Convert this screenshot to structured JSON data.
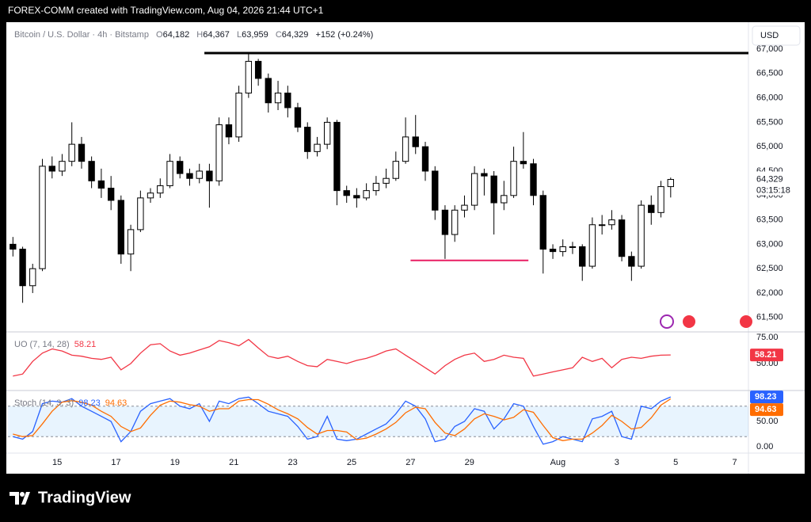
{
  "header": "FOREX-COMM created with TradingView.com, Aug 04, 2026 21:44 UTC+1",
  "footer": "TradingView",
  "chart_data": [
    {
      "type": "candlestick",
      "legend": {
        "symbol": "Bitcoin / U.S. Dollar · 4h · Bitstamp",
        "o": "O",
        "open": "64,182",
        "h": "H",
        "high": "64,367",
        "l": "L",
        "low": "63,959",
        "c": "C",
        "close": "64,329",
        "change": "+152 (+0.24%)"
      },
      "currency": "USD",
      "countdown": "03:15:18",
      "up_color": "#ffffff",
      "down_color": "#000000",
      "x": [
        13.5,
        13.83,
        14.17,
        14.5,
        14.83,
        15.17,
        15.5,
        15.83,
        16.17,
        16.5,
        16.83,
        17.17,
        17.5,
        17.83,
        18.17,
        18.5,
        18.83,
        19.17,
        19.5,
        19.83,
        20.17,
        20.5,
        20.83,
        21.17,
        21.5,
        21.83,
        22.17,
        22.5,
        22.83,
        23.17,
        23.5,
        23.83,
        24.17,
        24.5,
        24.83,
        25.17,
        25.5,
        25.83,
        26.17,
        26.5,
        26.83,
        27.17,
        27.5,
        27.83,
        28.17,
        28.5,
        28.83,
        29.17,
        29.5,
        29.83,
        30.17,
        30.5,
        30.83,
        31.17,
        31.5,
        31.83,
        32.17,
        32.5,
        32.83,
        33.17,
        33.5,
        33.83,
        34.17,
        34.5,
        34.83,
        35.17,
        35.5,
        35.83
      ],
      "open": [
        63000,
        62900,
        62150,
        62500,
        64600,
        64500,
        64700,
        65050,
        64700,
        64300,
        64150,
        63900,
        62800,
        63300,
        63950,
        64050,
        64200,
        64700,
        64450,
        64350,
        64500,
        64300,
        65450,
        65200,
        66100,
        66750,
        66400,
        65900,
        66100,
        65800,
        65400,
        64900,
        65050,
        65500,
        64100,
        64000,
        63950,
        64100,
        64250,
        64350,
        64700,
        65200,
        65000,
        64500,
        63700,
        63200,
        63700,
        63800,
        64450,
        64400,
        63850,
        64000,
        64700,
        64650,
        64000,
        62900,
        62850,
        62950,
        62950,
        62550,
        63400,
        63400,
        63500,
        62750,
        62550,
        63800,
        63650,
        64182
      ],
      "high": [
        63150,
        62950,
        62600,
        64750,
        64800,
        64850,
        65500,
        65200,
        64800,
        64550,
        64400,
        64000,
        63400,
        64100,
        64150,
        64350,
        64850,
        64800,
        64550,
        64650,
        64650,
        65600,
        65600,
        66250,
        66900,
        66800,
        66500,
        66350,
        66250,
        65900,
        65500,
        65200,
        65600,
        65550,
        64200,
        64150,
        64250,
        64400,
        64550,
        64900,
        65600,
        65650,
        65100,
        64600,
        63800,
        63800,
        64000,
        64600,
        64550,
        64500,
        64300,
        65000,
        65300,
        64750,
        64100,
        63000,
        63100,
        63050,
        63000,
        63550,
        63600,
        63700,
        63600,
        62850,
        63900,
        64000,
        64300,
        64367
      ],
      "low": [
        62750,
        61800,
        62000,
        62450,
        64350,
        64400,
        64600,
        64550,
        64150,
        63950,
        63700,
        62600,
        62450,
        63250,
        63850,
        63950,
        64150,
        64350,
        64200,
        64250,
        63750,
        64200,
        65050,
        65100,
        66000,
        66250,
        65700,
        65750,
        65600,
        65300,
        64750,
        64800,
        64950,
        63800,
        63850,
        63750,
        63900,
        64000,
        64150,
        64300,
        64650,
        64850,
        64300,
        63500,
        62700,
        63050,
        63550,
        63700,
        64000,
        63200,
        63700,
        63950,
        64550,
        63800,
        62400,
        62700,
        62750,
        62800,
        62250,
        62500,
        63200,
        63300,
        62650,
        62250,
        62500,
        63400,
        63550,
        63959
      ],
      "close": [
        62900,
        62150,
        62500,
        64600,
        64500,
        64700,
        65050,
        64700,
        64300,
        64150,
        63900,
        62800,
        63300,
        63950,
        64050,
        64200,
        64700,
        64450,
        64350,
        64500,
        64300,
        65450,
        65200,
        66100,
        66750,
        66400,
        65900,
        66100,
        65800,
        65400,
        64900,
        65050,
        65500,
        64100,
        64000,
        63950,
        64100,
        64250,
        64350,
        64700,
        65200,
        65000,
        64500,
        63700,
        63200,
        63700,
        63800,
        64450,
        64400,
        63850,
        64000,
        64700,
        64650,
        64000,
        62900,
        62850,
        62950,
        62950,
        62550,
        63400,
        63400,
        63500,
        62750,
        62550,
        63800,
        63650,
        64182,
        64329
      ],
      "lines": [
        {
          "value": 66920,
          "from": 20,
          "color": "#000000"
        },
        {
          "value": 62670,
          "from": 27,
          "to": 31,
          "color": "#e91e63"
        }
      ],
      "xlim": [
        13.33,
        38.47
      ],
      "ylim": [
        61220,
        67520
      ],
      "yticks": [
        {
          "value": 61500,
          "label": "61,500"
        },
        {
          "value": 62000,
          "label": "62,000"
        },
        {
          "value": 62500,
          "label": "62,500"
        },
        {
          "value": 63000,
          "label": "63,000"
        },
        {
          "value": 63500,
          "label": "63,500"
        },
        {
          "value": 64000,
          "label": "64,000"
        },
        {
          "value": 64500,
          "label": "64,500"
        },
        {
          "value": 65000,
          "label": "65,000"
        },
        {
          "value": 65500,
          "label": "65,500"
        },
        {
          "value": 66000,
          "label": "66,000"
        },
        {
          "value": 66500,
          "label": "66,500"
        },
        {
          "value": 67000,
          "label": "67,000"
        }
      ]
    },
    {
      "type": "line",
      "title": "UO (7, 14, 28)",
      "x": [
        13.5,
        13.83,
        14.17,
        14.5,
        14.83,
        15.17,
        15.5,
        15.83,
        16.17,
        16.5,
        16.83,
        17.17,
        17.5,
        17.83,
        18.17,
        18.5,
        18.83,
        19.17,
        19.5,
        19.83,
        20.17,
        20.5,
        20.83,
        21.17,
        21.5,
        21.83,
        22.17,
        22.5,
        22.83,
        23.17,
        23.5,
        23.83,
        24.17,
        24.5,
        24.83,
        25.17,
        25.5,
        25.83,
        26.17,
        26.5,
        26.83,
        27.17,
        27.5,
        27.83,
        28.17,
        28.5,
        28.83,
        29.17,
        29.5,
        29.83,
        30.17,
        30.5,
        30.83,
        31.17,
        31.5,
        31.83,
        32.17,
        32.5,
        32.83,
        33.17,
        33.5,
        33.83,
        34.17,
        34.5,
        34.83,
        35.17,
        35.5,
        35.83
      ],
      "series": [
        {
          "color": "#f23645",
          "values": [
            38,
            40,
            52,
            60,
            64,
            62,
            58,
            57,
            55,
            54,
            56,
            44,
            50,
            60,
            68,
            69,
            62,
            58,
            60,
            63,
            66,
            72,
            70,
            67,
            73,
            65,
            57,
            55,
            57,
            52,
            48,
            47,
            54,
            52,
            50,
            53,
            55,
            58,
            62,
            64,
            58,
            52,
            46,
            40,
            48,
            54,
            58,
            60,
            52,
            54,
            58,
            56,
            55,
            38,
            40,
            42,
            44,
            46,
            56,
            52,
            55,
            46,
            54,
            56,
            55,
            57,
            58,
            58.21
          ]
        }
      ],
      "xlim": [
        13.33,
        38.47
      ],
      "ylim": [
        25,
        79.5
      ],
      "yticks": [
        {
          "value": 50,
          "label": "50.00"
        },
        {
          "value": 75,
          "label": "75.00"
        }
      ]
    },
    {
      "type": "line",
      "title": "Stoch (14, 3, 3)",
      "x": [
        13.5,
        13.83,
        14.17,
        14.5,
        14.83,
        15.17,
        15.5,
        15.83,
        16.17,
        16.5,
        16.83,
        17.17,
        17.5,
        17.83,
        18.17,
        18.5,
        18.83,
        19.17,
        19.5,
        19.83,
        20.17,
        20.5,
        20.83,
        21.17,
        21.5,
        21.83,
        22.17,
        22.5,
        22.83,
        23.17,
        23.5,
        23.83,
        24.17,
        24.5,
        24.83,
        25.17,
        25.5,
        25.83,
        26.17,
        26.5,
        26.83,
        27.17,
        27.5,
        27.83,
        28.17,
        28.5,
        28.83,
        29.17,
        29.5,
        29.83,
        30.17,
        30.5,
        30.83,
        31.17,
        31.5,
        31.83,
        32.17,
        32.5,
        32.83,
        33.17,
        33.5,
        33.83,
        34.17,
        34.5,
        34.83,
        35.17,
        35.5,
        35.83
      ],
      "series": [
        {
          "color": "#2962ff",
          "values": [
            20,
            15,
            30,
            85,
            90,
            88,
            95,
            80,
            70,
            60,
            50,
            10,
            30,
            70,
            85,
            90,
            95,
            80,
            75,
            85,
            50,
            90,
            85,
            95,
            98,
            85,
            70,
            65,
            60,
            40,
            15,
            20,
            60,
            15,
            12,
            15,
            25,
            35,
            45,
            65,
            90,
            80,
            55,
            10,
            15,
            40,
            50,
            75,
            70,
            35,
            55,
            85,
            80,
            40,
            5,
            10,
            20,
            15,
            10,
            55,
            60,
            70,
            20,
            15,
            80,
            75,
            90,
            98.23
          ]
        },
        {
          "color": "#ff6d00",
          "values": [
            25,
            20,
            22,
            45,
            70,
            88,
            91,
            88,
            82,
            70,
            60,
            40,
            30,
            37,
            62,
            82,
            90,
            88,
            83,
            80,
            70,
            75,
            75,
            90,
            93,
            93,
            84,
            73,
            65,
            55,
            38,
            25,
            32,
            32,
            29,
            14,
            17,
            25,
            35,
            48,
            67,
            78,
            75,
            48,
            27,
            22,
            35,
            55,
            65,
            60,
            53,
            58,
            73,
            68,
            42,
            18,
            12,
            15,
            15,
            27,
            42,
            62,
            50,
            35,
            38,
            57,
            82,
            94.63
          ]
        }
      ],
      "band": [
        20,
        80
      ],
      "xlim": [
        13.33,
        38.47
      ],
      "ylim": [
        -12.5,
        109.4
      ],
      "yticks": [
        {
          "value": 0,
          "label": "0.00"
        },
        {
          "value": 50,
          "label": "50.00"
        }
      ],
      "xticks": [
        15,
        17,
        19,
        21,
        23,
        25,
        27,
        29,
        {
          "value": 32,
          "label": "Aug"
        },
        {
          "value": 34,
          "label": "3"
        },
        {
          "value": 36,
          "label": "5"
        },
        {
          "value": 38,
          "label": "7"
        }
      ]
    }
  ]
}
